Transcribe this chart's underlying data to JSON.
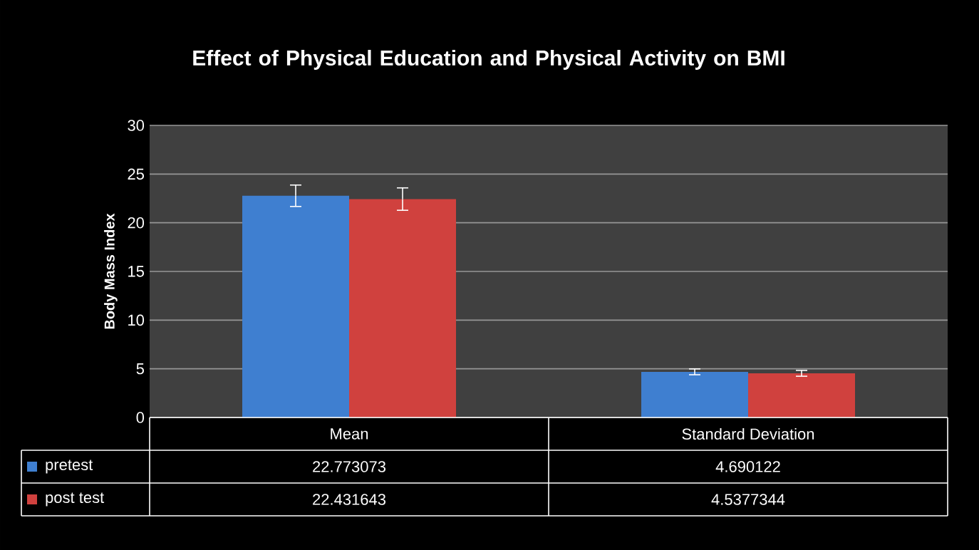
{
  "chart_data": {
    "type": "bar",
    "title": "Effect of Physical Education and Physical Activity on BMI",
    "ylabel": "Body Mass Index",
    "categories": [
      "Mean",
      "Standard Deviation"
    ],
    "series": [
      {
        "name": "pretest",
        "color": "#3f7fd0",
        "values": [
          22.773073,
          4.690122
        ],
        "errors": [
          1.1,
          0.3
        ]
      },
      {
        "name": "post test",
        "color": "#d0413e",
        "values": [
          22.431643,
          4.5377344
        ],
        "errors": [
          1.15,
          0.3
        ]
      }
    ],
    "ylim": [
      0,
      30
    ],
    "yticks": [
      0,
      5,
      10,
      15,
      20,
      25,
      30
    ],
    "grid": "y",
    "legend": "bottom",
    "data_labels": true
  }
}
